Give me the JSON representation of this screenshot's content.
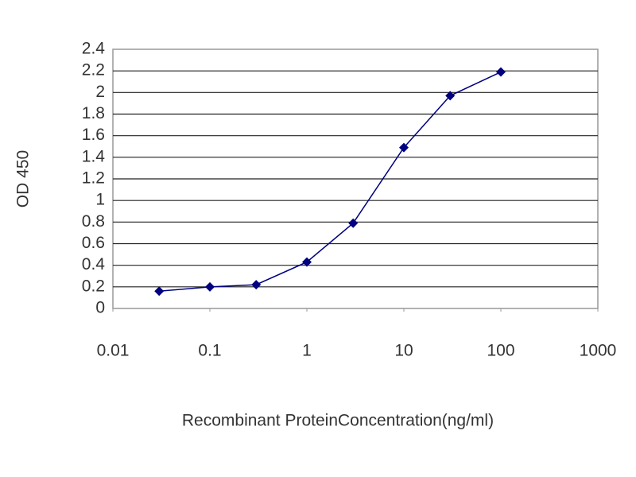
{
  "chart_data": {
    "type": "line",
    "x_label": "Recombinant ProteinConcentration(ng/ml)",
    "y_label": "OD 450",
    "x_scale": "log",
    "x": [
      0.03,
      0.1,
      0.3,
      1,
      3,
      10,
      30,
      100
    ],
    "series": [
      {
        "color": "#000080",
        "values": [
          0.16,
          0.2,
          0.22,
          0.43,
          0.79,
          1.49,
          1.97,
          2.19
        ]
      }
    ],
    "xlim": [
      0.01,
      1000
    ],
    "xticks": [
      0.01,
      0.1,
      1,
      10,
      100,
      1000
    ],
    "ylim": [
      0,
      2.4
    ],
    "yticks": [
      0,
      0.2,
      0.4,
      0.6,
      0.8,
      1,
      1.2,
      1.4,
      1.6,
      1.8,
      2,
      2.2,
      2.4
    ],
    "grid": true
  }
}
